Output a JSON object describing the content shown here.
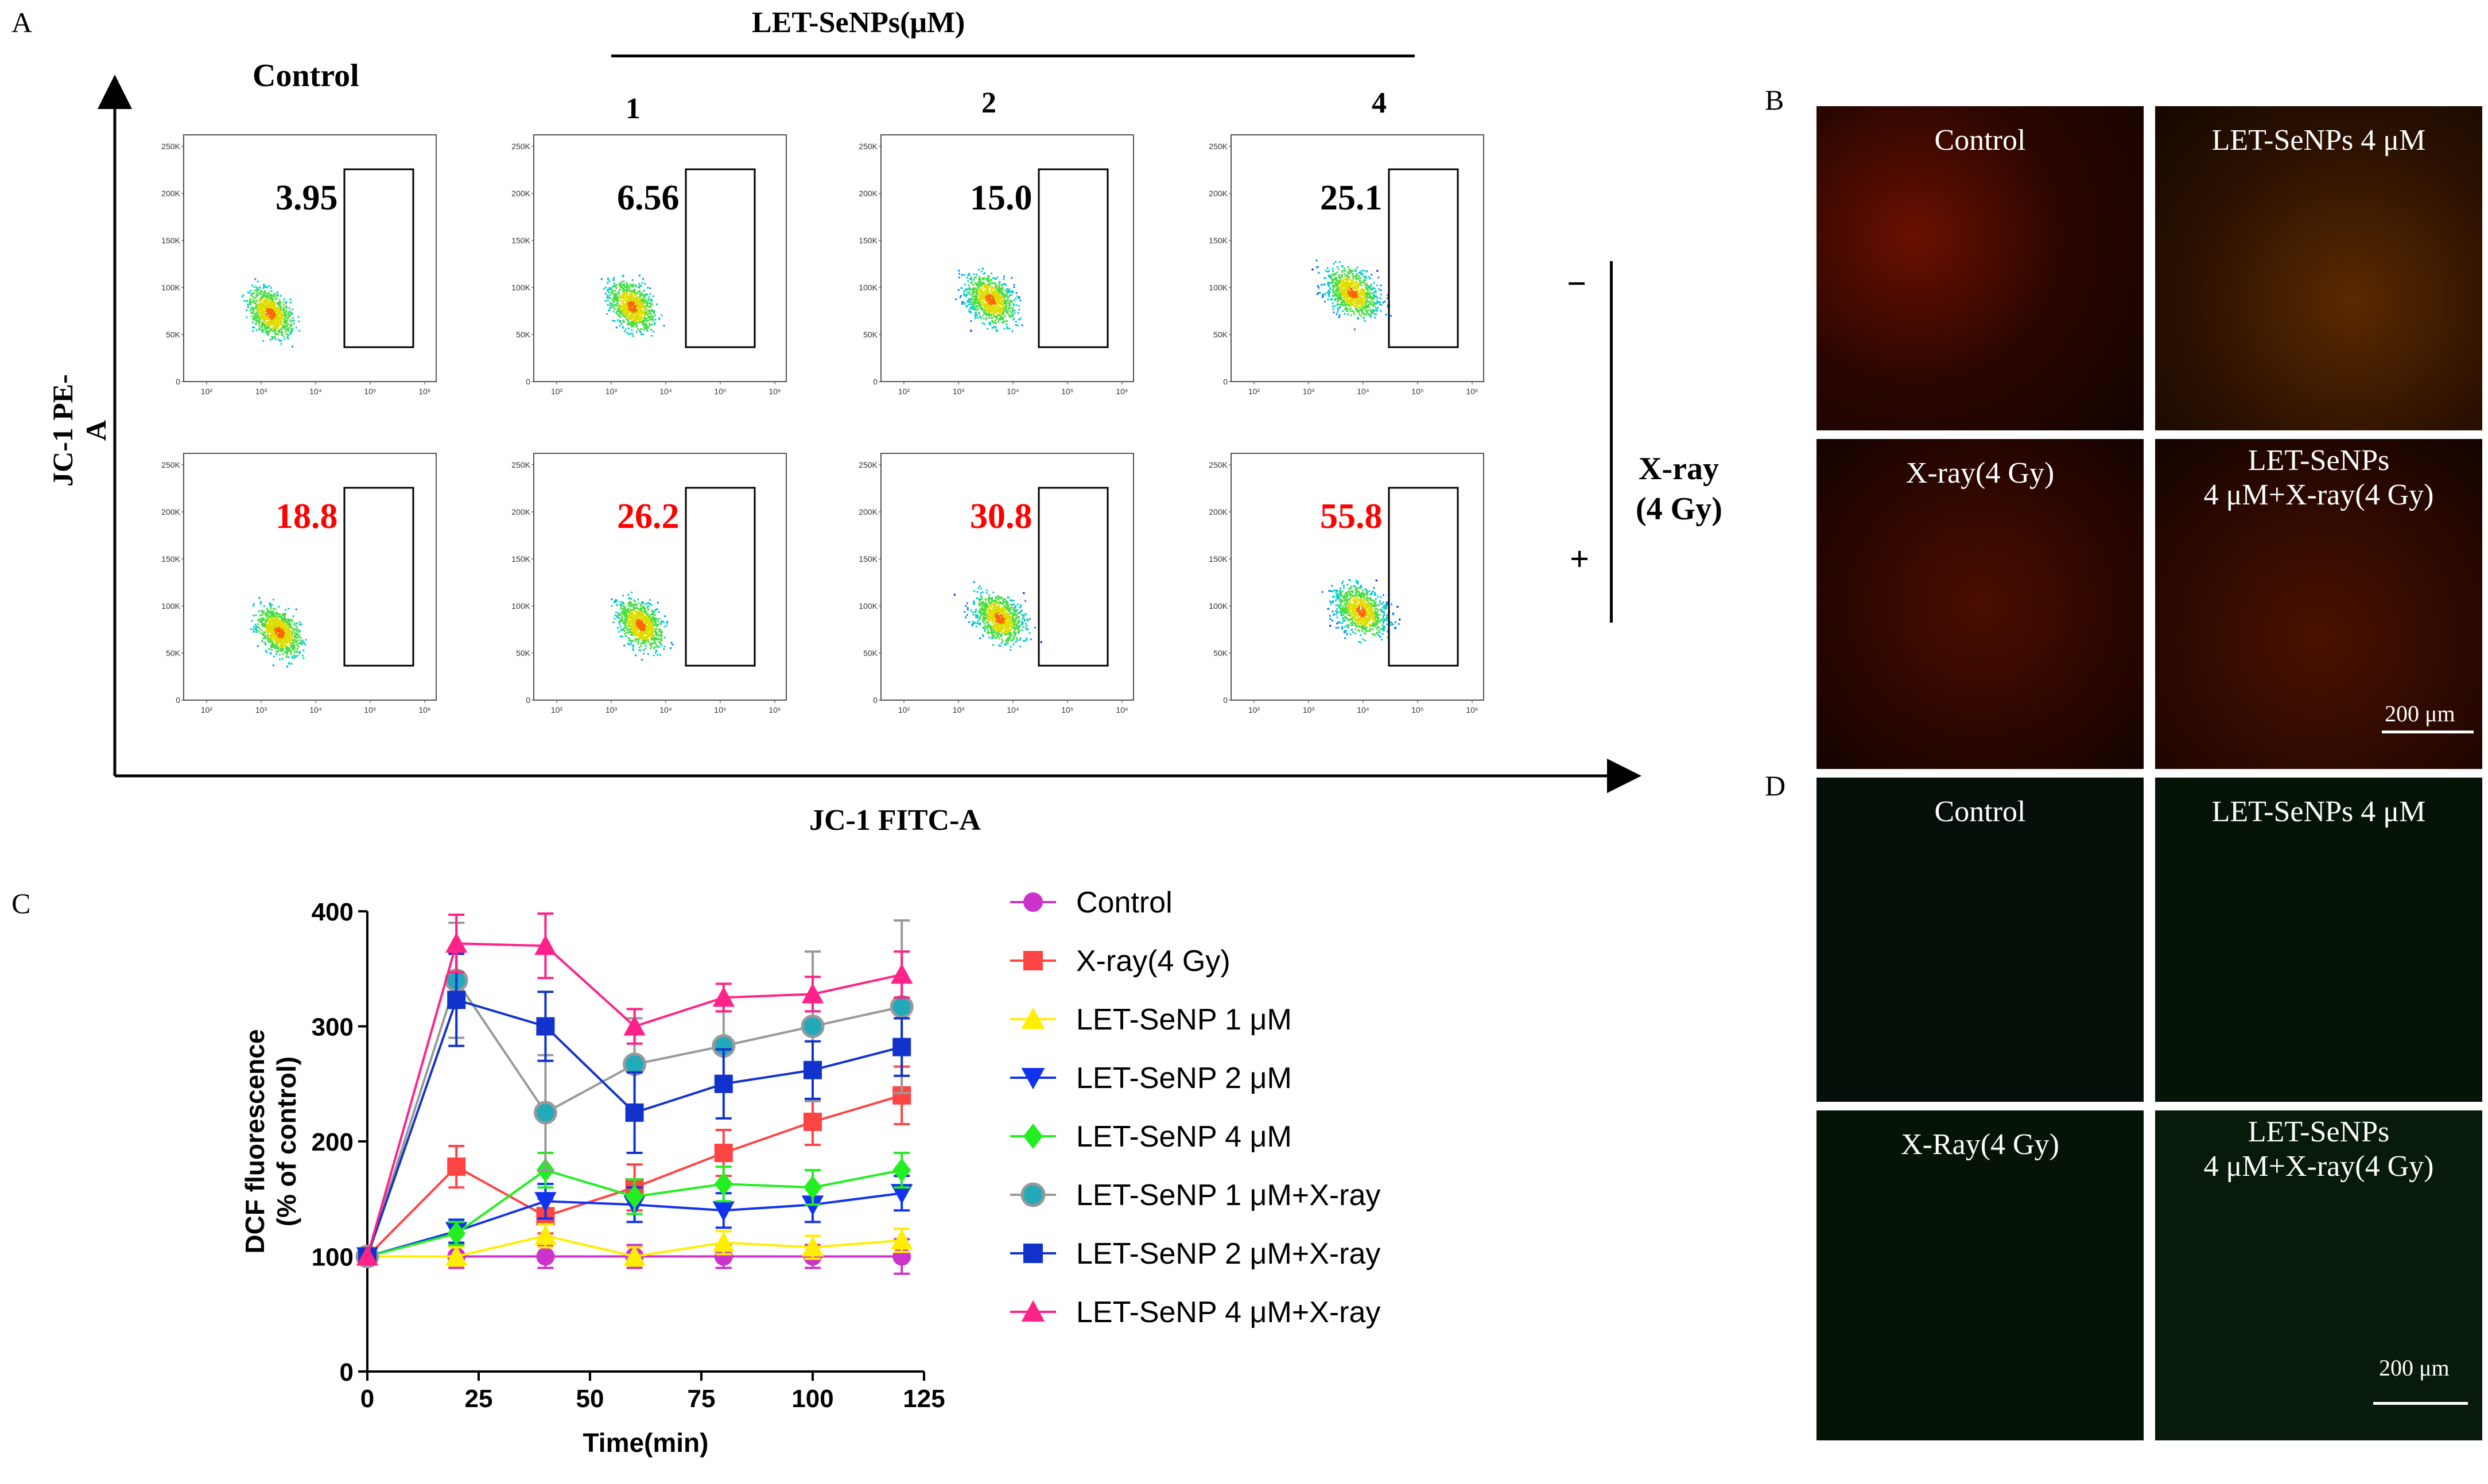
{
  "panel_labels": {
    "a": "A",
    "b": "B",
    "c": "C",
    "d": "D"
  },
  "panelA": {
    "group_header": "LET-SeNPs(μM)",
    "col_labels": [
      "Control",
      "1",
      "2",
      "4"
    ],
    "y_axis_label": "JC-1 PE-A",
    "x_axis_label": "JC-1 FITC-A",
    "xray_label_line1": "X-ray",
    "xray_label_line2": "(4 Gy)",
    "minus": "−",
    "plus": "+",
    "y_ticks": [
      "250K",
      "200K",
      "150K",
      "100K",
      "50K",
      "0"
    ],
    "x_ticks": [
      "10²",
      "10³",
      "10⁴",
      "10⁵",
      "10⁶"
    ],
    "values_top": [
      "3.95",
      "6.56",
      "15.0",
      "25.1"
    ],
    "values_bottom": [
      "18.8",
      "26.2",
      "30.8",
      "55.8"
    ],
    "value_top_color": "#000000",
    "value_bottom_color": "#ff0000"
  },
  "panelB": {
    "labels": [
      "Control",
      "LET-SeNPs 4 μM",
      "X-ray(4 Gy)",
      "LET-SeNPs\n4 μM+X-ray(4 Gy)"
    ],
    "scalebar": "200 μm"
  },
  "panelD": {
    "labels": [
      "Control",
      "LET-SeNPs 4 μM",
      "X-Ray(4 Gy)",
      "LET-SeNPs\n4 μM+X-ray(4 Gy)"
    ],
    "scalebar": "200 μm"
  },
  "chart_data": {
    "type": "line",
    "ylabel_line1": "DCF fluorescence",
    "ylabel_line2": "(% of control)",
    "xlabel": "Time(min)",
    "xlim": [
      0,
      125
    ],
    "ylim": [
      0,
      400
    ],
    "x_ticks": [
      0,
      25,
      50,
      75,
      100,
      125
    ],
    "y_ticks": [
      0,
      100,
      200,
      300,
      400
    ],
    "x": [
      0,
      20,
      40,
      60,
      80,
      100,
      120
    ],
    "series": [
      {
        "name": "Control",
        "color": "#cc33cc",
        "marker": "circle",
        "values": [
          100,
          100,
          100,
          100,
          100,
          100,
          100
        ],
        "errors": [
          0,
          10,
          10,
          10,
          10,
          10,
          15
        ]
      },
      {
        "name": "X-ray(4 Gy)",
        "color": "#ff4444",
        "marker": "square",
        "values": [
          100,
          178,
          135,
          160,
          190,
          217,
          240
        ],
        "errors": [
          0,
          18,
          15,
          20,
          20,
          20,
          25
        ]
      },
      {
        "name": "LET-SeNP 1 μM",
        "color": "#ffee00",
        "marker": "triangle-up",
        "values": [
          100,
          100,
          118,
          100,
          112,
          108,
          114
        ],
        "errors": [
          0,
          8,
          10,
          8,
          10,
          10,
          10
        ]
      },
      {
        "name": "LET-SeNP 2 μM",
        "color": "#1133ee",
        "marker": "triangle-down",
        "values": [
          100,
          122,
          148,
          145,
          140,
          145,
          155
        ],
        "errors": [
          0,
          10,
          15,
          15,
          15,
          15,
          15
        ]
      },
      {
        "name": "LET-SeNP 4 μM",
        "color": "#22ee22",
        "marker": "diamond",
        "values": [
          100,
          120,
          175,
          152,
          163,
          160,
          175
        ],
        "errors": [
          0,
          10,
          15,
          15,
          15,
          15,
          15
        ]
      },
      {
        "name": "LET-SeNP 1 μM+X-ray",
        "color": "#999999",
        "marker": "circle-teal",
        "values": [
          100,
          340,
          225,
          267,
          283,
          300,
          317
        ],
        "errors": [
          0,
          50,
          50,
          40,
          30,
          65,
          75
        ]
      },
      {
        "name": "LET-SeNP 2 μM+X-ray",
        "color": "#1133cc",
        "marker": "square",
        "values": [
          100,
          323,
          300,
          225,
          250,
          262,
          282
        ],
        "errors": [
          0,
          40,
          30,
          35,
          30,
          25,
          25
        ]
      },
      {
        "name": "LET-SeNP 4 μM+X-ray",
        "color": "#ff2288",
        "marker": "triangle-up",
        "values": [
          100,
          372,
          370,
          300,
          325,
          328,
          345
        ],
        "errors": [
          0,
          25,
          28,
          15,
          12,
          15,
          20
        ]
      }
    ]
  }
}
